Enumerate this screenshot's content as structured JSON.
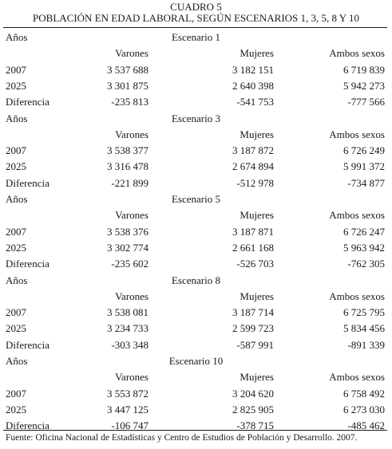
{
  "title": "CUADRO 5",
  "subtitle": "POBLACIÓN EN EDAD LABORAL, SEGÚN ESCENARIOS 1, 3, 5, 8 Y 10",
  "years_label": "Años",
  "columns": [
    "Varones",
    "Mujeres",
    "Ambos sexos"
  ],
  "blocks": [
    {
      "scenario": "Escenario 1",
      "rows": [
        {
          "label": "2007",
          "values": [
            "3 537 688",
            "3 182 151",
            "6 719 839"
          ]
        },
        {
          "label": "2025",
          "values": [
            "3 301 875",
            "2 640 398",
            "5 942 273"
          ]
        },
        {
          "label": "Diferencia",
          "values": [
            "-235 813",
            "-541 753",
            "-777 566"
          ]
        }
      ]
    },
    {
      "scenario": "Escenario 3",
      "rows": [
        {
          "label": "2007",
          "values": [
            "3 538 377",
            "3 187 872",
            "6 726 249"
          ]
        },
        {
          "label": "2025",
          "values": [
            "3 316 478",
            "2 674 894",
            "5 991 372"
          ]
        },
        {
          "label": "Diferencia",
          "values": [
            "-221 899",
            "-512 978",
            "-734 877"
          ]
        }
      ]
    },
    {
      "scenario": "Escenario 5",
      "rows": [
        {
          "label": "2007",
          "values": [
            "3 538 376",
            "3 187 871",
            "6 726 247"
          ]
        },
        {
          "label": "2025",
          "values": [
            "3 302 774",
            "2 661 168",
            "5 963 942"
          ]
        },
        {
          "label": "Diferencia",
          "values": [
            "-235 602",
            "-526 703",
            "-762 305"
          ]
        }
      ]
    },
    {
      "scenario": "Escenario 8",
      "rows": [
        {
          "label": "2007",
          "values": [
            "3 538 081",
            "3 187 714",
            "6 725 795"
          ]
        },
        {
          "label": "2025",
          "values": [
            "3 234 733",
            "2 599 723",
            "5 834 456"
          ]
        },
        {
          "label": "Diferencia",
          "values": [
            "-303 348",
            "-587 991",
            "-891 339"
          ]
        }
      ]
    },
    {
      "scenario": "Escenario 10",
      "rows": [
        {
          "label": "2007",
          "values": [
            "3 553 872",
            "3 204 620",
            "6 758 492"
          ]
        },
        {
          "label": "2025",
          "values": [
            "3 447 125",
            "2 825 905",
            "6 273 030"
          ]
        },
        {
          "label": "Diferencia",
          "values": [
            "-106 747",
            "-378 715",
            "-485 462"
          ]
        }
      ]
    }
  ],
  "footer": "Fuente: Oficina Nacional de Estadísticas y Centro de Estudios de Población y Desarrollo. 2007."
}
